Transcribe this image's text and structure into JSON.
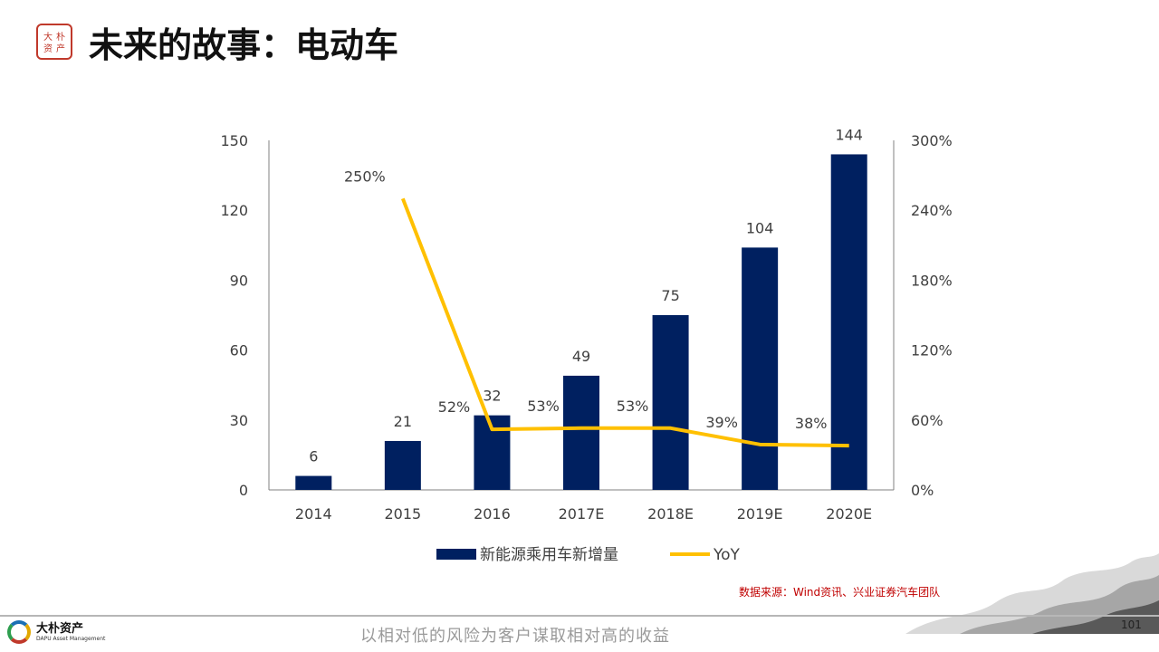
{
  "header": {
    "title": "未来的故事：电动车",
    "seal_text": "大朴资产"
  },
  "chart_data": {
    "type": "bar",
    "categories": [
      "2014",
      "2015",
      "2016",
      "2017E",
      "2018E",
      "2019E",
      "2020E"
    ],
    "series": [
      {
        "name": "新能源乘用车新增量",
        "type": "bar",
        "axis": "left",
        "color": "#002060",
        "values": [
          6,
          21,
          32,
          49,
          75,
          104,
          144
        ],
        "labels": [
          "6",
          "21",
          "32",
          "49",
          "75",
          "104",
          "144"
        ]
      },
      {
        "name": "YoY",
        "type": "line",
        "axis": "right",
        "color": "#FFC000",
        "values": [
          null,
          250,
          52,
          53,
          53,
          39,
          38
        ],
        "labels": [
          "",
          "250%",
          "52%",
          "53%",
          "53%",
          "39%",
          "38%"
        ]
      }
    ],
    "y_left": {
      "min": 0,
      "max": 150,
      "ticks": [
        0,
        30,
        60,
        90,
        120,
        150
      ],
      "tick_labels": [
        "0",
        "30",
        "60",
        "90",
        "120",
        "150"
      ]
    },
    "y_right": {
      "min": 0,
      "max": 300,
      "ticks": [
        0,
        60,
        120,
        180,
        240,
        300
      ],
      "tick_labels": [
        "0%",
        "60%",
        "120%",
        "180%",
        "240%",
        "300%"
      ]
    },
    "legend_position": "bottom",
    "grid": false
  },
  "source": "数据来源：Wind资讯、兴业证券汽车团队",
  "footer": {
    "logo_name": "大朴资产",
    "logo_sub": "DAPU Asset Management",
    "slogan": "以相对低的风险为客户谋取相对高的收益",
    "page_number": "101"
  }
}
